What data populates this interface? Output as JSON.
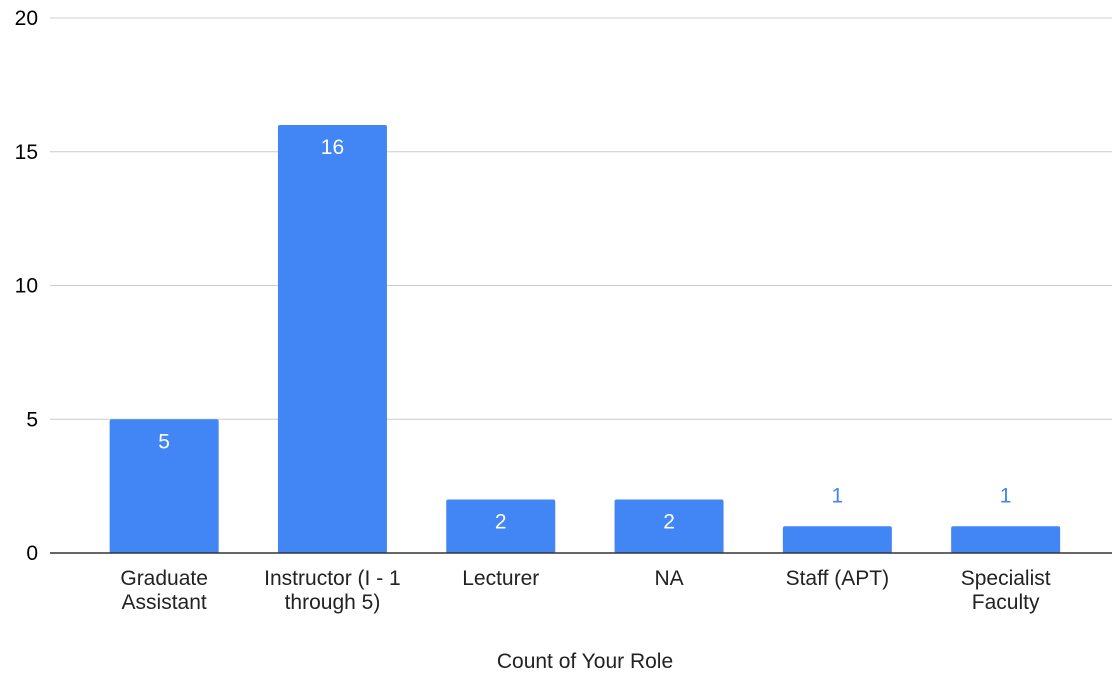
{
  "chart_data": {
    "type": "bar",
    "categories": [
      [
        "Graduate",
        "Assistant"
      ],
      [
        "Instructor (I - 1",
        "through 5)"
      ],
      [
        "Lecturer"
      ],
      [
        "NA"
      ],
      [
        "Staff (APT)"
      ],
      [
        "Specialist",
        "Faculty"
      ]
    ],
    "values": [
      5,
      16,
      2,
      2,
      1,
      1
    ],
    "data_labels": [
      "5",
      "16",
      "2",
      "2",
      "1",
      "1"
    ],
    "y_ticks": [
      0,
      5,
      10,
      15,
      20
    ],
    "ylim": [
      0,
      20
    ],
    "xlabel": "Count of Your Role",
    "ylabel": "",
    "grid": true,
    "legend": "none",
    "colors": {
      "bar": "#4285f4",
      "label_inside": "#ffffff",
      "label_outside": "#4285f4",
      "gridline": "#cccccc",
      "baseline": "#333333"
    }
  }
}
